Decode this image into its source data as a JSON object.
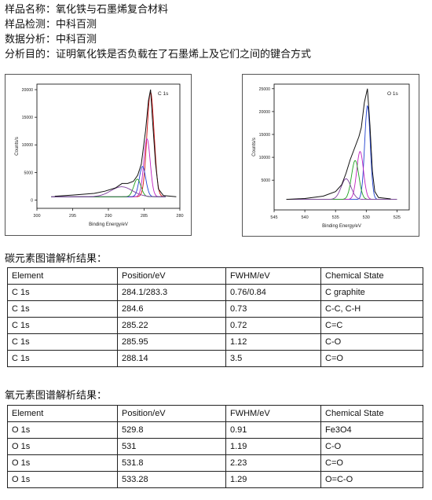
{
  "header": {
    "lines": [
      {
        "label": "样品名称：",
        "value": "氧化铁与石墨烯复合材料"
      },
      {
        "label": "样品检测：",
        "value": "中科百测"
      },
      {
        "label": "数据分析：",
        "value": "中科百测"
      },
      {
        "label": "分析目的：",
        "value": "证明氧化铁是否负载在了石墨烯上及它们之间的键合方式"
      }
    ]
  },
  "chart_data": [
    {
      "type": "line",
      "series_label": "C 1s",
      "xlabel": "Binding Energy/eV",
      "ylabel": "Counts/s",
      "xlim": [
        300,
        280
      ],
      "ylim": [
        -1500,
        21000
      ],
      "x_ticks": [
        "300",
        "295",
        "290",
        "285",
        "280"
      ],
      "y_ticks": [
        "0",
        "5000",
        "10000",
        "15000",
        "20000"
      ],
      "raw_points": [
        [
          297.5,
          700
        ],
        [
          295,
          900
        ],
        [
          292,
          1200
        ],
        [
          290.5,
          1600
        ],
        [
          289,
          2200
        ],
        [
          288.1,
          3000
        ],
        [
          287.3,
          3000
        ],
        [
          286.5,
          3400
        ],
        [
          285.9,
          4500
        ],
        [
          285.4,
          6500
        ],
        [
          285,
          10500
        ],
        [
          284.8,
          12500
        ],
        [
          284.4,
          18000
        ],
        [
          284.1,
          20000
        ],
        [
          283.8,
          14000
        ],
        [
          283.4,
          6500
        ],
        [
          283,
          2000
        ],
        [
          282.3,
          800
        ],
        [
          280.5,
          600
        ]
      ],
      "peaks": [
        {
          "center": 284.1,
          "height": 19000,
          "width": 0.5,
          "color": "#d01010"
        },
        {
          "center": 284.6,
          "height": 10500,
          "width": 0.45,
          "color": "#c020c0"
        },
        {
          "center": 285.22,
          "height": 5500,
          "width": 0.45,
          "color": "#2040d0"
        },
        {
          "center": 285.95,
          "height": 3200,
          "width": 0.5,
          "color": "#20a020"
        },
        {
          "center": 288.14,
          "height": 1800,
          "width": 1.5,
          "color": "#8040a0"
        }
      ],
      "baseline": 600
    },
    {
      "type": "line",
      "series_label": "O 1s",
      "xlabel": "Binding Energy/eV",
      "ylabel": "Counts/s",
      "xlim": [
        545,
        523
      ],
      "ylim": [
        -1500,
        26000
      ],
      "x_ticks": [
        "545",
        "540",
        "535",
        "530",
        "525"
      ],
      "y_ticks": [
        "5000",
        "10000",
        "15000",
        "20000",
        "25000"
      ],
      "raw_points": [
        [
          543,
          800
        ],
        [
          540,
          1000
        ],
        [
          537,
          1500
        ],
        [
          535,
          2500
        ],
        [
          534,
          4000
        ],
        [
          533.3,
          6500
        ],
        [
          532.6,
          9500
        ],
        [
          531.9,
          12000
        ],
        [
          531.2,
          14500
        ],
        [
          530.8,
          16500
        ],
        [
          530.3,
          22000
        ],
        [
          529.8,
          25000
        ],
        [
          529.4,
          17000
        ],
        [
          529,
          7000
        ],
        [
          528.6,
          2500
        ],
        [
          528,
          1200
        ],
        [
          526,
          900
        ]
      ],
      "peaks": [
        {
          "center": 529.8,
          "height": 20500,
          "width": 0.45,
          "color": "#2040d0"
        },
        {
          "center": 531,
          "height": 10500,
          "width": 0.55,
          "color": "#c020c0"
        },
        {
          "center": 531.8,
          "height": 8500,
          "width": 0.6,
          "color": "#20a020"
        },
        {
          "center": 533.28,
          "height": 4500,
          "width": 0.8,
          "color": "#8040a0"
        }
      ],
      "baseline": 800
    }
  ],
  "carbon": {
    "title": "碳元素图谱解析结果：",
    "headers": [
      "Element",
      "Position/eV",
      "FWHM/eV",
      "Chemical State"
    ],
    "rows": [
      [
        "C 1s",
        "284.1/283.3",
        "0.76/0.84",
        "C graphite"
      ],
      [
        "C 1s",
        "284.6",
        "0.73",
        "C-C, C-H"
      ],
      [
        "C 1s",
        "285.22",
        "0.72",
        "C=C"
      ],
      [
        "C 1s",
        "285.95",
        "1.12",
        "C-O"
      ],
      [
        "C 1s",
        "288.14",
        "3.5",
        "C=O"
      ]
    ]
  },
  "oxygen": {
    "title": "氧元素图谱解析结果：",
    "headers": [
      "Element",
      "Position/eV",
      "FWHM/eV",
      "Chemical State"
    ],
    "rows": [
      [
        "O 1s",
        "529.8",
        "0.91",
        "Fe3O4"
      ],
      [
        "O 1s",
        "531",
        "1.19",
        "C-O"
      ],
      [
        "O 1s",
        "531.8",
        "2.23",
        "C=O"
      ],
      [
        "O 1s",
        "533.28",
        "1.29",
        "O=C-O"
      ]
    ]
  }
}
